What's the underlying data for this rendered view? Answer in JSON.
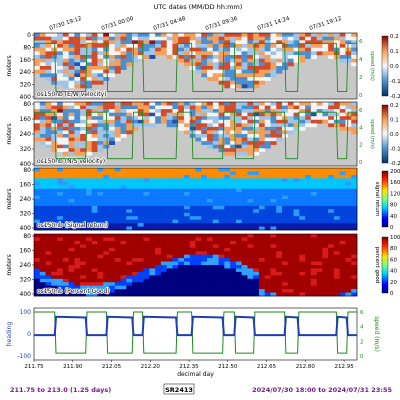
{
  "header": {
    "top_axis_title": "UTC dates (MM/DD hh:mm)",
    "top_ticks": [
      "07/30 19:12",
      "07/31 00:00",
      "07/31 04:48",
      "07/31 09:36",
      "07/31 14:24",
      "07/31 19:12"
    ]
  },
  "footer": {
    "range": "211.75 to 213.0 (1.25 days)",
    "cruise": "SR2413",
    "dates": "2024/07/30 18:00 to 2024/07/31 23:55",
    "xlabel": "decimal day"
  },
  "colors": {
    "purple": "#7a1a8a",
    "heading_blue": "#1f3fb0",
    "speed_green": "#1b8a1b",
    "nodata_gray": "#c8c8c8"
  },
  "chart_data": [
    {
      "type": "heatmap",
      "label": "os150nb (E/W velocity)",
      "ylabel": "meters",
      "yticks": [
        "0",
        "80",
        "160",
        "240",
        "320",
        "400"
      ],
      "colorbar_ticks": [
        "0.2",
        "0.1",
        "0.0",
        "-0.1",
        "-0.2"
      ],
      "right_ticks": [
        "6",
        "4",
        "2",
        "0"
      ],
      "right_label": "speed (m/s)",
      "clim": [
        -0.2,
        0.2
      ],
      "colormap": "RdBu_r"
    },
    {
      "type": "heatmap",
      "label": "os150nb (N/S velocity)",
      "ylabel": "meters",
      "yticks": [
        "80",
        "160",
        "240",
        "320",
        "400"
      ],
      "colorbar_ticks": [
        "0.2",
        "0.1",
        "0.0",
        "-0.1",
        "-0.2"
      ],
      "right_ticks": [
        "6",
        "4",
        "2",
        "0"
      ],
      "right_label": "speed (m/s)",
      "clim": [
        -0.2,
        0.2
      ],
      "colormap": "RdBu_r"
    },
    {
      "type": "heatmap",
      "label": "os150nb (Signal return)",
      "ylabel": "meters",
      "yticks": [
        "80",
        "160",
        "240",
        "320",
        "400"
      ],
      "colorbar_ticks": [
        "200",
        "160",
        "120",
        "80",
        "40",
        "0"
      ],
      "colorbar_label": "signal return",
      "clim": [
        0,
        200
      ],
      "colormap": "jet"
    },
    {
      "type": "heatmap",
      "label": "os150nb (Percent Good)",
      "ylabel": "meters",
      "yticks": [
        "80",
        "160",
        "240",
        "320",
        "400"
      ],
      "colorbar_ticks": [
        "100",
        "80",
        "60",
        "40",
        "20",
        "0"
      ],
      "colorbar_label": "percent good",
      "clim": [
        0,
        100
      ],
      "colormap": "jet"
    },
    {
      "type": "line",
      "xlabel": "decimal day",
      "x_ticks": [
        "211.75",
        "211.90",
        "212.05",
        "212.20",
        "212.35",
        "212.50",
        "212.65",
        "212.80",
        "212.95"
      ],
      "left_label": "heading",
      "left_ticks": [
        "100",
        "0",
        "-100"
      ],
      "right_label": "speed (m/s)",
      "right_ticks": [
        "6",
        "4",
        "2",
        "0"
      ],
      "xlim": [
        211.75,
        213.0
      ],
      "series": [
        {
          "key": "heading",
          "x": [
            211.75,
            211.8,
            211.83,
            211.835,
            211.95,
            211.955,
            212.03,
            212.035,
            212.13,
            212.135,
            212.17,
            212.175,
            212.3,
            212.305,
            212.36,
            212.365,
            212.48,
            212.485,
            212.525,
            212.53,
            212.6,
            212.605,
            212.72,
            212.725,
            212.77,
            212.775,
            212.92,
            212.925,
            212.96,
            212.965,
            213.0
          ],
          "values": [
            -5,
            -5,
            -5,
            78,
            75,
            -5,
            -5,
            78,
            75,
            -5,
            -5,
            78,
            75,
            -5,
            -5,
            78,
            75,
            -5,
            -5,
            78,
            75,
            -5,
            -5,
            78,
            75,
            -5,
            -5,
            78,
            75,
            -5,
            -5
          ]
        },
        {
          "key": "speed",
          "x": [
            211.75,
            211.83,
            211.835,
            211.95,
            211.955,
            212.03,
            212.035,
            212.13,
            212.135,
            212.17,
            212.175,
            212.3,
            212.305,
            212.36,
            212.365,
            212.48,
            212.485,
            212.525,
            212.53,
            212.6,
            212.605,
            212.72,
            212.725,
            212.77,
            212.775,
            212.92,
            212.925,
            212.96,
            212.965,
            213.0
          ],
          "values": [
            6.0,
            6.0,
            0.4,
            0.4,
            6.0,
            6.0,
            0.4,
            0.4,
            6.0,
            6.0,
            0.4,
            0.4,
            6.0,
            6.0,
            0.4,
            0.4,
            6.0,
            6.0,
            0.4,
            0.4,
            6.0,
            6.0,
            0.4,
            0.4,
            6.0,
            6.0,
            0.4,
            0.4,
            6.0,
            6.0
          ]
        }
      ]
    }
  ]
}
